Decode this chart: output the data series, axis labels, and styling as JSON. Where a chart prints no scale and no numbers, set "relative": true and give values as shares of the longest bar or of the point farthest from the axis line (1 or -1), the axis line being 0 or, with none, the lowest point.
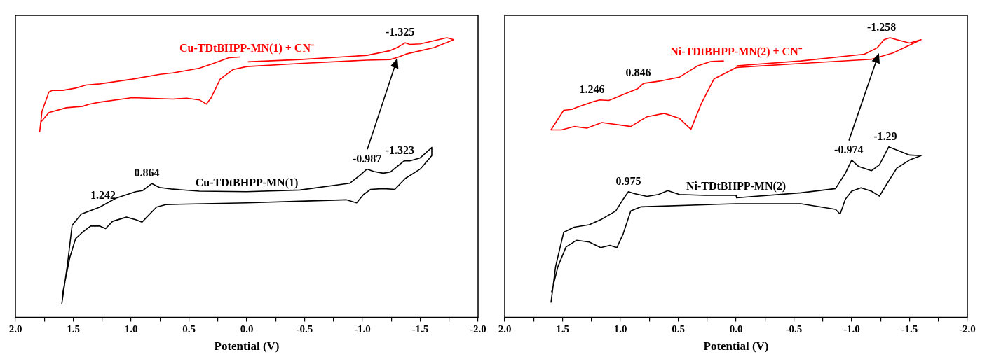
{
  "chart_data": [
    {
      "type": "line",
      "relative": true,
      "xlabel": "Potential (V)",
      "xlim": [
        2.0,
        -2.0
      ],
      "marker": "none",
      "line_style": "solid",
      "xticks": [
        {
          "value": 2.0,
          "label": "2.0"
        },
        {
          "value": 1.75,
          "label": null
        },
        {
          "value": 1.5,
          "label": "1.5"
        },
        {
          "value": 1.25,
          "label": null
        },
        {
          "value": 1.0,
          "label": "1.0"
        },
        {
          "value": 0.75,
          "label": null
        },
        {
          "value": 0.5,
          "label": "0.5"
        },
        {
          "value": 0.25,
          "label": null
        },
        {
          "value": 0.0,
          "label": "0.0"
        },
        {
          "value": -0.25,
          "label": null
        },
        {
          "value": -0.5,
          "label": "-0.5"
        },
        {
          "value": -0.75,
          "label": null
        },
        {
          "value": -1.0,
          "label": "-1.0"
        },
        {
          "value": -1.25,
          "label": null
        },
        {
          "value": -1.5,
          "label": "-1.5"
        },
        {
          "value": -1.75,
          "label": null
        },
        {
          "value": -2.0,
          "label": "-2.0"
        }
      ],
      "series": [
        {
          "name": "Cu-TDtBHPP-MN(1) + CN⁻",
          "color": "#ff0000",
          "x": [
            0.06,
            0.15,
            0.29,
            0.41,
            0.64,
            0.75,
            0.99,
            1.27,
            1.39,
            1.48,
            1.59,
            1.68,
            1.71,
            1.77,
            1.79,
            1.78,
            1.71,
            1.56,
            1.42,
            1.36,
            1.27,
            0.99,
            0.64,
            0.52,
            0.41,
            0.35,
            0.31,
            0.23,
            0.12,
            0.0,
            -0.46,
            -1.04,
            -1.24,
            -1.3,
            -1.38,
            -1.62,
            -1.79,
            -1.73,
            -1.5,
            -1.41,
            -1.37,
            -1.31,
            -1.24,
            -1.04,
            -0.46,
            -0.01
          ],
          "values": [
            0.931,
            0.929,
            0.908,
            0.891,
            0.874,
            0.869,
            0.852,
            0.835,
            0.831,
            0.82,
            0.812,
            0.812,
            0.806,
            0.738,
            0.665,
            0.699,
            0.733,
            0.75,
            0.755,
            0.763,
            0.77,
            0.786,
            0.781,
            0.784,
            0.778,
            0.763,
            0.784,
            0.852,
            0.886,
            0.897,
            0.908,
            0.92,
            0.922,
            0.929,
            0.942,
            0.965,
            0.993,
            1.0,
            0.978,
            0.976,
            0.982,
            0.967,
            0.954,
            0.937,
            0.922,
            0.914
          ]
        },
        {
          "name": "Cu-TDtBHPP-MN(1)",
          "color": "#000000",
          "x": [
            1.6,
            1.55,
            1.51,
            1.43,
            1.27,
            1.13,
            0.96,
            0.9,
            0.82,
            0.755,
            0.64,
            0.41,
            0.0,
            -0.46,
            -0.89,
            -0.98,
            -1.04,
            -1.1,
            -1.18,
            -1.24,
            -1.36,
            -1.41,
            -1.5,
            -1.6,
            -1.6,
            -1.5,
            -1.37,
            -1.28,
            -1.18,
            -1.07,
            -1.01,
            -0.95,
            -0.86,
            -0.46,
            0.0,
            0.7,
            0.78,
            0.86,
            0.905,
            0.96,
            1.04,
            1.16,
            1.22,
            1.27,
            1.35,
            1.42,
            1.48,
            1.53,
            1.595
          ],
          "values": [
            0.046,
            0.19,
            0.33,
            0.37,
            0.395,
            0.427,
            0.45,
            0.454,
            0.479,
            0.465,
            0.459,
            0.452,
            0.45,
            0.456,
            0.48,
            0.509,
            0.531,
            0.522,
            0.516,
            0.52,
            0.56,
            0.56,
            0.571,
            0.608,
            0.579,
            0.531,
            0.497,
            0.458,
            0.461,
            0.458,
            0.44,
            0.41,
            0.421,
            0.416,
            0.41,
            0.404,
            0.395,
            0.361,
            0.341,
            0.35,
            0.359,
            0.344,
            0.318,
            0.327,
            0.327,
            0.305,
            0.282,
            0.214,
            0.08
          ]
        }
      ],
      "annotations": [
        {
          "text": "-1.325",
          "x": -1.325,
          "y": 0.982
        },
        {
          "text": "-0.987",
          "x": -1.04,
          "y": 0.531
        },
        {
          "text": "-1.323",
          "x": -1.323,
          "y": 0.56
        },
        {
          "text": "1.242",
          "x": 1.242,
          "y": 0.4
        },
        {
          "text": "0.864",
          "x": 0.864,
          "y": 0.479
        }
      ]
    },
    {
      "type": "line",
      "relative": true,
      "xlabel": "Potential (V)",
      "xlim": [
        2.0,
        -2.0
      ],
      "marker": "none",
      "line_style": "solid",
      "xticks": [
        {
          "value": 2.0,
          "label": "2.0"
        },
        {
          "value": 1.75,
          "label": null
        },
        {
          "value": 1.5,
          "label": "1.5"
        },
        {
          "value": 1.25,
          "label": null
        },
        {
          "value": 1.0,
          "label": "1.0"
        },
        {
          "value": 0.75,
          "label": null
        },
        {
          "value": 0.5,
          "label": "0.5"
        },
        {
          "value": 0.25,
          "label": null
        },
        {
          "value": 0.0,
          "label": "0.0"
        },
        {
          "value": -0.25,
          "label": null
        },
        {
          "value": -0.5,
          "label": "-0.5"
        },
        {
          "value": -0.75,
          "label": null
        },
        {
          "value": -1.0,
          "label": "-1.0"
        },
        {
          "value": -1.25,
          "label": null
        },
        {
          "value": -1.5,
          "label": "-1.5"
        },
        {
          "value": -1.75,
          "label": null
        },
        {
          "value": -2.0,
          "label": "-2.0"
        }
      ],
      "series": [
        {
          "name": "Ni-TDtBHPP-MN(2) + CN⁻",
          "color": "#ff0000",
          "x": [
            0.105,
            0.22,
            0.33,
            0.49,
            0.66,
            0.8,
            0.85,
            0.96,
            1.1,
            1.18,
            1.24,
            1.38,
            1.42,
            1.49,
            1.6,
            1.51,
            1.4,
            1.29,
            1.16,
            0.91,
            0.77,
            0.62,
            0.49,
            0.39,
            0.3,
            0.19,
            -0.005,
            -0.56,
            -1.17,
            -1.36,
            -1.6,
            -1.5,
            -1.39,
            -1.33,
            -1.28,
            -1.22,
            -1.11,
            -0.56,
            -0.005
          ],
          "values": [
            0.917,
            0.915,
            0.9,
            0.859,
            0.845,
            0.837,
            0.818,
            0.8,
            0.776,
            0.778,
            0.771,
            0.751,
            0.744,
            0.741,
            0.671,
            0.671,
            0.683,
            0.677,
            0.697,
            0.683,
            0.718,
            0.73,
            0.712,
            0.673,
            0.765,
            0.853,
            0.894,
            0.908,
            0.923,
            0.946,
            0.993,
            0.981,
            0.993,
            1.0,
            0.993,
            0.964,
            0.941,
            0.917,
            0.9
          ]
        },
        {
          "name": "Ni-TDtBHPP-MN(2)",
          "color": "#000000",
          "x": [
            1.6,
            1.56,
            1.49,
            1.4,
            1.27,
            1.16,
            1.04,
            0.976,
            0.93,
            0.88,
            0.77,
            0.67,
            0.59,
            0.49,
            0.27,
            0.0,
            -0.005,
            -0.56,
            -0.86,
            -0.945,
            -1.0,
            -1.06,
            -1.17,
            -1.24,
            -1.32,
            -1.39,
            -1.5,
            -1.6,
            -1.5,
            -1.39,
            -1.3,
            -1.24,
            -1.17,
            -1.08,
            -1.0,
            -0.945,
            -0.9,
            -0.86,
            -0.56,
            0.0,
            0.82,
            0.91,
            0.976,
            1.03,
            1.09,
            1.17,
            1.27,
            1.38,
            1.47,
            1.54,
            1.595
          ],
          "values": [
            0.053,
            0.182,
            0.305,
            0.323,
            0.332,
            0.352,
            0.381,
            0.423,
            0.45,
            0.443,
            0.433,
            0.44,
            0.454,
            0.44,
            0.437,
            0.437,
            0.428,
            0.446,
            0.461,
            0.516,
            0.563,
            0.54,
            0.525,
            0.546,
            0.61,
            0.599,
            0.581,
            0.579,
            0.563,
            0.534,
            0.475,
            0.434,
            0.452,
            0.464,
            0.452,
            0.423,
            0.37,
            0.387,
            0.407,
            0.407,
            0.396,
            0.381,
            0.299,
            0.25,
            0.258,
            0.25,
            0.27,
            0.276,
            0.252,
            0.182,
            0.09
          ]
        }
      ],
      "annotations": [
        {
          "text": "-1.258",
          "x": -1.258,
          "y": 1.0
        },
        {
          "text": "-0.974",
          "x": -0.974,
          "y": 0.563
        },
        {
          "text": "-1.29",
          "x": -1.29,
          "y": 0.61
        },
        {
          "text": "0.975",
          "x": 0.93,
          "y": 0.45
        },
        {
          "text": "1.246",
          "x": 1.246,
          "y": 0.778
        },
        {
          "text": "0.846",
          "x": 0.846,
          "y": 0.837
        }
      ]
    }
  ]
}
